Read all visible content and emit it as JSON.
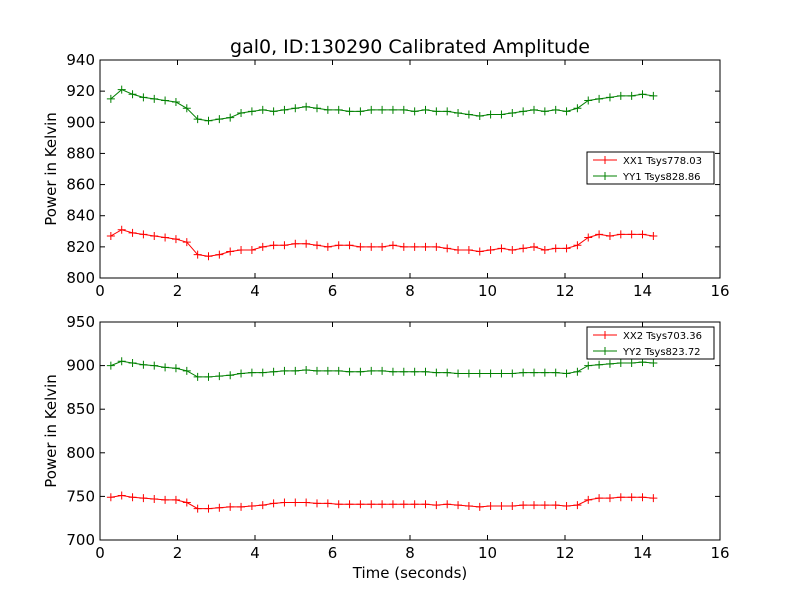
{
  "chart_data": [
    {
      "type": "line",
      "title": "gal0, ID:130290 Calibrated Amplitude",
      "xlabel": "",
      "ylabel": "Power in Kelvin",
      "xlim": [
        0,
        16
      ],
      "ylim": [
        800,
        940
      ],
      "xticks": [
        "0",
        "2",
        "4",
        "6",
        "8",
        "10",
        "12",
        "14",
        "16"
      ],
      "yticks": [
        "800",
        "820",
        "840",
        "860",
        "880",
        "900",
        "920",
        "940"
      ],
      "legend_position": "center-right",
      "x": [
        0.28,
        0.56,
        0.84,
        1.12,
        1.4,
        1.68,
        1.96,
        2.24,
        2.52,
        2.8,
        3.08,
        3.36,
        3.64,
        3.92,
        4.2,
        4.48,
        4.76,
        5.04,
        5.32,
        5.6,
        5.88,
        6.16,
        6.44,
        6.72,
        7.0,
        7.28,
        7.56,
        7.84,
        8.12,
        8.4,
        8.68,
        8.96,
        9.24,
        9.52,
        9.8,
        10.08,
        10.36,
        10.64,
        10.92,
        11.2,
        11.48,
        11.76,
        12.04,
        12.32,
        12.6,
        12.88,
        13.16,
        13.44,
        13.72,
        14.0,
        14.28
      ],
      "series": [
        {
          "name": "XX1 Tsys778.03",
          "color": "#ff0000",
          "values": [
            827,
            831,
            829,
            828,
            827,
            826,
            825,
            823,
            815,
            814,
            815,
            817,
            818,
            818,
            820,
            821,
            821,
            822,
            822,
            821,
            820,
            821,
            821,
            820,
            820,
            820,
            821,
            820,
            820,
            820,
            820,
            819,
            818,
            818,
            817,
            818,
            819,
            818,
            819,
            820,
            818,
            819,
            819,
            821,
            826,
            828,
            827,
            828,
            828,
            828,
            827
          ]
        },
        {
          "name": "YY1 Tsys828.86",
          "color": "#008000",
          "values": [
            915,
            921,
            918,
            916,
            915,
            914,
            913,
            909,
            902,
            901,
            902,
            903,
            906,
            907,
            908,
            907,
            908,
            909,
            910,
            909,
            908,
            908,
            907,
            907,
            908,
            908,
            908,
            908,
            907,
            908,
            907,
            907,
            906,
            905,
            904,
            905,
            905,
            906,
            907,
            908,
            907,
            908,
            907,
            909,
            914,
            915,
            916,
            917,
            917,
            918,
            917
          ]
        }
      ]
    },
    {
      "type": "line",
      "title": "",
      "xlabel": "Time (seconds)",
      "ylabel": "Power in Kelvin",
      "xlim": [
        0,
        16
      ],
      "ylim": [
        700,
        950
      ],
      "xticks": [
        "0",
        "2",
        "4",
        "6",
        "8",
        "10",
        "12",
        "14",
        "16"
      ],
      "yticks": [
        "700",
        "750",
        "800",
        "850",
        "900",
        "950"
      ],
      "legend_position": "top-right",
      "x": [
        0.28,
        0.56,
        0.84,
        1.12,
        1.4,
        1.68,
        1.96,
        2.24,
        2.52,
        2.8,
        3.08,
        3.36,
        3.64,
        3.92,
        4.2,
        4.48,
        4.76,
        5.04,
        5.32,
        5.6,
        5.88,
        6.16,
        6.44,
        6.72,
        7.0,
        7.28,
        7.56,
        7.84,
        8.12,
        8.4,
        8.68,
        8.96,
        9.24,
        9.52,
        9.8,
        10.08,
        10.36,
        10.64,
        10.92,
        11.2,
        11.48,
        11.76,
        12.04,
        12.32,
        12.6,
        12.88,
        13.16,
        13.44,
        13.72,
        14.0,
        14.28
      ],
      "series": [
        {
          "name": "XX2 Tsys703.36",
          "color": "#ff0000",
          "values": [
            749,
            751,
            749,
            748,
            747,
            746,
            746,
            743,
            736,
            736,
            737,
            738,
            738,
            739,
            740,
            742,
            743,
            743,
            743,
            742,
            742,
            741,
            741,
            741,
            741,
            741,
            741,
            741,
            741,
            741,
            740,
            741,
            740,
            739,
            738,
            739,
            739,
            739,
            740,
            740,
            740,
            740,
            739,
            740,
            746,
            748,
            748,
            749,
            749,
            749,
            748
          ]
        },
        {
          "name": "YY2 Tsys823.72",
          "color": "#008000",
          "values": [
            900,
            905,
            903,
            901,
            900,
            898,
            897,
            894,
            887,
            887,
            888,
            889,
            891,
            892,
            892,
            893,
            894,
            894,
            895,
            894,
            894,
            894,
            893,
            893,
            894,
            894,
            893,
            893,
            893,
            893,
            892,
            892,
            891,
            891,
            891,
            891,
            891,
            891,
            892,
            892,
            892,
            892,
            891,
            893,
            900,
            901,
            902,
            903,
            903,
            904,
            903
          ]
        }
      ]
    }
  ]
}
